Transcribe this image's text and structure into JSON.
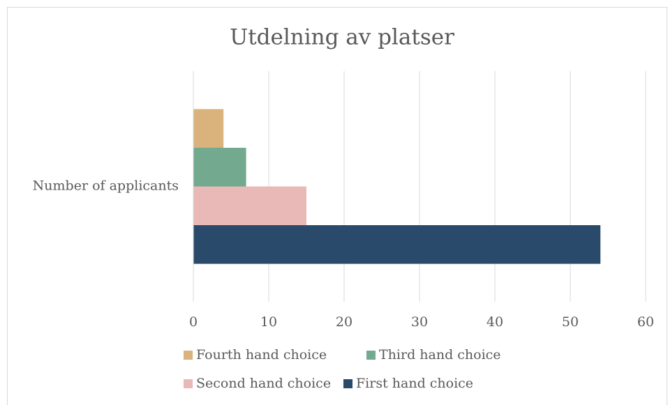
{
  "chart_data": {
    "type": "bar",
    "orientation": "horizontal",
    "title": "Utdelning av platser",
    "categories": [
      "Number of applicants"
    ],
    "series": [
      {
        "name": "First hand choice",
        "color": "#2a4a6b",
        "values": [
          54
        ]
      },
      {
        "name": "Second hand choice",
        "color": "#e8b9b6",
        "values": [
          15
        ]
      },
      {
        "name": "Third hand choice",
        "color": "#72a98f",
        "values": [
          7
        ]
      },
      {
        "name": "Fourth hand choice",
        "color": "#d9b27c",
        "values": [
          4
        ]
      }
    ],
    "xlim": [
      0,
      60
    ],
    "xticks": [
      0,
      10,
      20,
      30,
      40,
      50,
      60
    ],
    "grid": true,
    "legend": "bottom"
  }
}
